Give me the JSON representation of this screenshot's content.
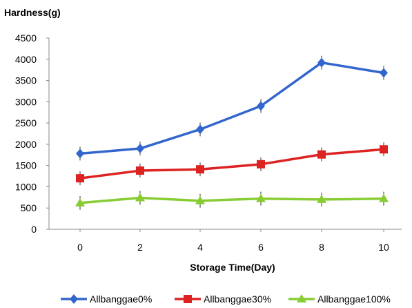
{
  "chart_data": {
    "type": "line",
    "ylabel": "Hardness(g)",
    "xlabel": "Storage Time(Day)",
    "x": [
      0,
      2,
      4,
      6,
      8,
      10
    ],
    "ylim": [
      0,
      4500
    ],
    "yticks": [
      0,
      500,
      1000,
      1500,
      2000,
      2500,
      3000,
      3500,
      4000,
      4500
    ],
    "grid": false,
    "legend_position": "bottom",
    "series": [
      {
        "name": "Allbanggae0%",
        "color": "#3366cc",
        "marker": "diamond",
        "values": [
          1780,
          1900,
          2350,
          2900,
          3920,
          3680
        ]
      },
      {
        "name": "Allbanggae30%",
        "color": "#dd2222",
        "marker": "square",
        "values": [
          1200,
          1380,
          1410,
          1530,
          1760,
          1880
        ]
      },
      {
        "name": "Allbanggae100%",
        "color": "#88cc33",
        "marker": "triangle",
        "values": [
          620,
          740,
          670,
          720,
          700,
          720
        ]
      }
    ]
  }
}
